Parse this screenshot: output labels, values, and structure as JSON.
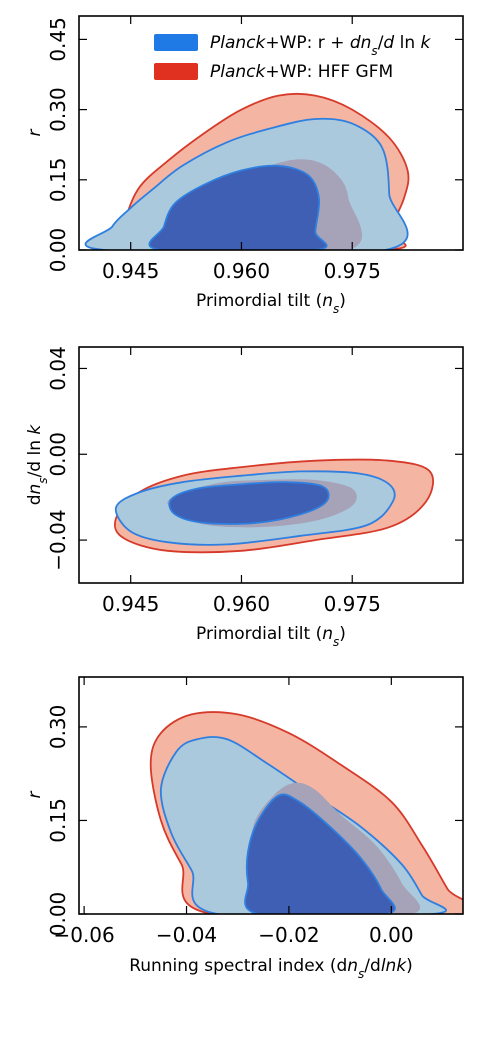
{
  "colors": {
    "planck_running_outer": "#abc9dc",
    "planck_running_inner": "#3e5fb3",
    "planck_running_line": "#2f7fe0",
    "hff_outer": "#f5b5a3",
    "hff_inner": "#a6a2b8",
    "hff_line": "#d63a2a",
    "legend_blue": "#1f7ae6",
    "legend_red": "#e0301f"
  },
  "chart_data": [
    {
      "type": "contour",
      "panel": "top",
      "xlabel": "Primordial tilt (n_s)",
      "xlabel_parts": {
        "pre": "Primordial tilt (",
        "var": "n",
        "sub": "s",
        "post": ")"
      },
      "ylabel": "r",
      "xlim": [
        0.938,
        0.99
      ],
      "ylim": [
        0.0,
        0.5
      ],
      "xticks": [
        0.945,
        0.96,
        0.975
      ],
      "xtick_labels": [
        "0.945",
        "0.960",
        "0.975"
      ],
      "yticks": [
        0.0,
        0.15,
        0.3,
        0.45
      ],
      "ytick_labels": [
        "0.00",
        "0.15",
        "0.30",
        "0.45"
      ],
      "legend": {
        "position": "top-right",
        "entries": [
          {
            "italic": "Planck",
            "text": "+WP: r + ",
            "math": "dn_s/d ln k",
            "color": "legend_blue"
          },
          {
            "italic": "Planck",
            "text": "+WP: HFF GFM",
            "color": "legend_red"
          }
        ]
      },
      "series": [
        {
          "name": "Planck+WP: HFF GFM",
          "level": "95%",
          "fill": "hff_outer",
          "line": "hff_line",
          "points": [
            [
              0.9435,
              0.0
            ],
            [
              0.944,
              0.05
            ],
            [
              0.946,
              0.13
            ],
            [
              0.95,
              0.19
            ],
            [
              0.955,
              0.25
            ],
            [
              0.96,
              0.3
            ],
            [
              0.965,
              0.33
            ],
            [
              0.97,
              0.33
            ],
            [
              0.975,
              0.3
            ],
            [
              0.98,
              0.24
            ],
            [
              0.9825,
              0.17
            ],
            [
              0.982,
              0.11
            ],
            [
              0.98,
              0.04
            ],
            [
              0.9795,
              0.0
            ]
          ]
        },
        {
          "name": "Planck+WP: r + dns/dlnk",
          "level": "95%",
          "fill": "planck_running_outer",
          "line": "planck_running_line",
          "points": [
            [
              0.9415,
              0.0
            ],
            [
              0.9425,
              0.05
            ],
            [
              0.945,
              0.09
            ],
            [
              0.948,
              0.13
            ],
            [
              0.952,
              0.18
            ],
            [
              0.958,
              0.23
            ],
            [
              0.964,
              0.26
            ],
            [
              0.97,
              0.28
            ],
            [
              0.975,
              0.27
            ],
            [
              0.979,
              0.22
            ],
            [
              0.98,
              0.12
            ],
            [
              0.9795,
              0.0
            ]
          ]
        },
        {
          "name": "Planck+WP: HFF GFM",
          "level": "68%",
          "fill": "hff_inner",
          "line": null,
          "points": [
            [
              0.9505,
              0.0
            ],
            [
              0.952,
              0.05
            ],
            [
              0.956,
              0.11
            ],
            [
              0.961,
              0.16
            ],
            [
              0.966,
              0.19
            ],
            [
              0.97,
              0.19
            ],
            [
              0.973,
              0.16
            ],
            [
              0.9745,
              0.11
            ],
            [
              0.9745,
              0.0
            ]
          ]
        },
        {
          "name": "Planck+WP: r + dns/dlnk",
          "level": "68%",
          "fill": "planck_running_inner",
          "line": "planck_running_line",
          "points": [
            [
              0.949,
              0.0
            ],
            [
              0.9495,
              0.05
            ],
            [
              0.951,
              0.1
            ],
            [
              0.955,
              0.14
            ],
            [
              0.96,
              0.17
            ],
            [
              0.965,
              0.18
            ],
            [
              0.969,
              0.16
            ],
            [
              0.9705,
              0.11
            ],
            [
              0.97,
              0.04
            ],
            [
              0.97,
              0.0
            ]
          ]
        }
      ]
    },
    {
      "type": "contour",
      "panel": "middle",
      "xlabel": "Primordial tilt (n_s)",
      "xlabel_parts": {
        "pre": "Primordial tilt (",
        "var": "n",
        "sub": "s",
        "post": ")"
      },
      "ylabel": "dn_s/d ln k",
      "xlim": [
        0.938,
        0.99
      ],
      "ylim": [
        -0.06,
        0.05
      ],
      "xticks": [
        0.945,
        0.96,
        0.975
      ],
      "xtick_labels": [
        "0.945",
        "0.960",
        "0.975"
      ],
      "yticks": [
        -0.04,
        0.0,
        0.04
      ],
      "ytick_labels": [
        "−0.04",
        "0.00",
        "0.04"
      ],
      "series": [
        {
          "name": "Planck+WP: HFF GFM",
          "level": "95%",
          "fill": "hff_outer",
          "line": "hff_line",
          "points": [
            [
              0.943,
              -0.03
            ],
            [
              0.946,
              -0.018
            ],
            [
              0.952,
              -0.01
            ],
            [
              0.96,
              -0.006
            ],
            [
              0.97,
              -0.003
            ],
            [
              0.98,
              -0.003
            ],
            [
              0.9855,
              -0.008
            ],
            [
              0.985,
              -0.022
            ],
            [
              0.98,
              -0.034
            ],
            [
              0.97,
              -0.04
            ],
            [
              0.96,
              -0.045
            ],
            [
              0.95,
              -0.045
            ],
            [
              0.944,
              -0.039
            ]
          ]
        },
        {
          "name": "Planck+WP: r + dns/dlnk",
          "level": "95%",
          "fill": "planck_running_outer",
          "line": "planck_running_line",
          "points": [
            [
              0.943,
              -0.025
            ],
            [
              0.946,
              -0.018
            ],
            [
              0.952,
              -0.013
            ],
            [
              0.96,
              -0.01
            ],
            [
              0.968,
              -0.008
            ],
            [
              0.976,
              -0.009
            ],
            [
              0.98,
              -0.014
            ],
            [
              0.9805,
              -0.022
            ],
            [
              0.977,
              -0.033
            ],
            [
              0.968,
              -0.038
            ],
            [
              0.958,
              -0.042
            ],
            [
              0.95,
              -0.041
            ],
            [
              0.945,
              -0.036
            ]
          ]
        },
        {
          "name": "Planck+WP: HFF GFM",
          "level": "68%",
          "fill": "hff_inner",
          "line": null,
          "points": [
            [
              0.95,
              -0.022
            ],
            [
              0.956,
              -0.014
            ],
            [
              0.963,
              -0.012
            ],
            [
              0.97,
              -0.012
            ],
            [
              0.975,
              -0.016
            ],
            [
              0.975,
              -0.024
            ],
            [
              0.97,
              -0.031
            ],
            [
              0.962,
              -0.034
            ],
            [
              0.954,
              -0.032
            ]
          ]
        },
        {
          "name": "Planck+WP: r + dns/dlnk",
          "level": "68%",
          "fill": "planck_running_inner",
          "line": "planck_running_line",
          "points": [
            [
              0.9505,
              -0.021
            ],
            [
              0.954,
              -0.016
            ],
            [
              0.96,
              -0.014
            ],
            [
              0.966,
              -0.013
            ],
            [
              0.971,
              -0.015
            ],
            [
              0.9715,
              -0.022
            ],
            [
              0.968,
              -0.028
            ],
            [
              0.962,
              -0.032
            ],
            [
              0.955,
              -0.032
            ],
            [
              0.951,
              -0.028
            ]
          ]
        }
      ]
    },
    {
      "type": "contour",
      "panel": "bottom",
      "xlabel": "Running spectral index (dn_s/dlnk)",
      "xlabel_parts": {
        "pre": "Running spectral index (d",
        "var": "n",
        "sub": "s",
        "post": "/d",
        "var2": "lnk",
        "post2": ")"
      },
      "ylabel": "r",
      "xlim": [
        -0.061,
        0.014
      ],
      "ylim": [
        0.0,
        0.38
      ],
      "xticks": [
        -0.06,
        -0.04,
        -0.02,
        0.0
      ],
      "xtick_labels": [
        "−0.06",
        "−0.04",
        "−0.02",
        "0.00"
      ],
      "yticks": [
        0.0,
        0.15,
        0.3
      ],
      "ytick_labels": [
        "0.00",
        "0.15",
        "0.30"
      ],
      "series": [
        {
          "name": "Planck+WP: HFF GFM",
          "level": "95%",
          "fill": "hff_outer",
          "line": "hff_line",
          "points": [
            [
              -0.035,
              0.0
            ],
            [
              -0.041,
              0.08
            ],
            [
              -0.045,
              0.15
            ],
            [
              -0.047,
              0.24
            ],
            [
              -0.045,
              0.29
            ],
            [
              -0.039,
              0.32
            ],
            [
              -0.03,
              0.32
            ],
            [
              -0.02,
              0.29
            ],
            [
              -0.01,
              0.24
            ],
            [
              0.0,
              0.18
            ],
            [
              0.006,
              0.11
            ],
            [
              0.011,
              0.04
            ],
            [
              0.014,
              0.0
            ]
          ]
        },
        {
          "name": "Planck+WP: r + dns/dlnk",
          "level": "95%",
          "fill": "planck_running_outer",
          "line": "planck_running_line",
          "points": [
            [
              -0.034,
              0.0
            ],
            [
              -0.039,
              0.07
            ],
            [
              -0.043,
              0.13
            ],
            [
              -0.045,
              0.2
            ],
            [
              -0.042,
              0.26
            ],
            [
              -0.038,
              0.28
            ],
            [
              -0.032,
              0.28
            ],
            [
              -0.024,
              0.24
            ],
            [
              -0.015,
              0.19
            ],
            [
              -0.006,
              0.14
            ],
            [
              0.002,
              0.08
            ],
            [
              0.006,
              0.03
            ],
            [
              0.008,
              0.0
            ]
          ]
        },
        {
          "name": "Planck+WP: HFF GFM",
          "level": "68%",
          "fill": "hff_inner",
          "line": null,
          "points": [
            [
              -0.023,
              0.0
            ],
            [
              -0.027,
              0.06
            ],
            [
              -0.027,
              0.14
            ],
            [
              -0.023,
              0.19
            ],
            [
              -0.019,
              0.21
            ],
            [
              -0.015,
              0.2
            ],
            [
              -0.01,
              0.16
            ],
            [
              -0.003,
              0.11
            ],
            [
              0.002,
              0.05
            ],
            [
              0.004,
              0.0
            ]
          ]
        },
        {
          "name": "Planck+WP: r + dns/dlnk",
          "level": "68%",
          "fill": "planck_running_inner",
          "line": "planck_running_line",
          "points": [
            [
              -0.026,
              0.0
            ],
            [
              -0.028,
              0.05
            ],
            [
              -0.028,
              0.1
            ],
            [
              -0.026,
              0.15
            ],
            [
              -0.022,
              0.19
            ],
            [
              -0.018,
              0.18
            ],
            [
              -0.012,
              0.14
            ],
            [
              -0.006,
              0.09
            ],
            [
              -0.002,
              0.04
            ],
            [
              -0.001,
              0.0
            ]
          ]
        }
      ]
    }
  ]
}
